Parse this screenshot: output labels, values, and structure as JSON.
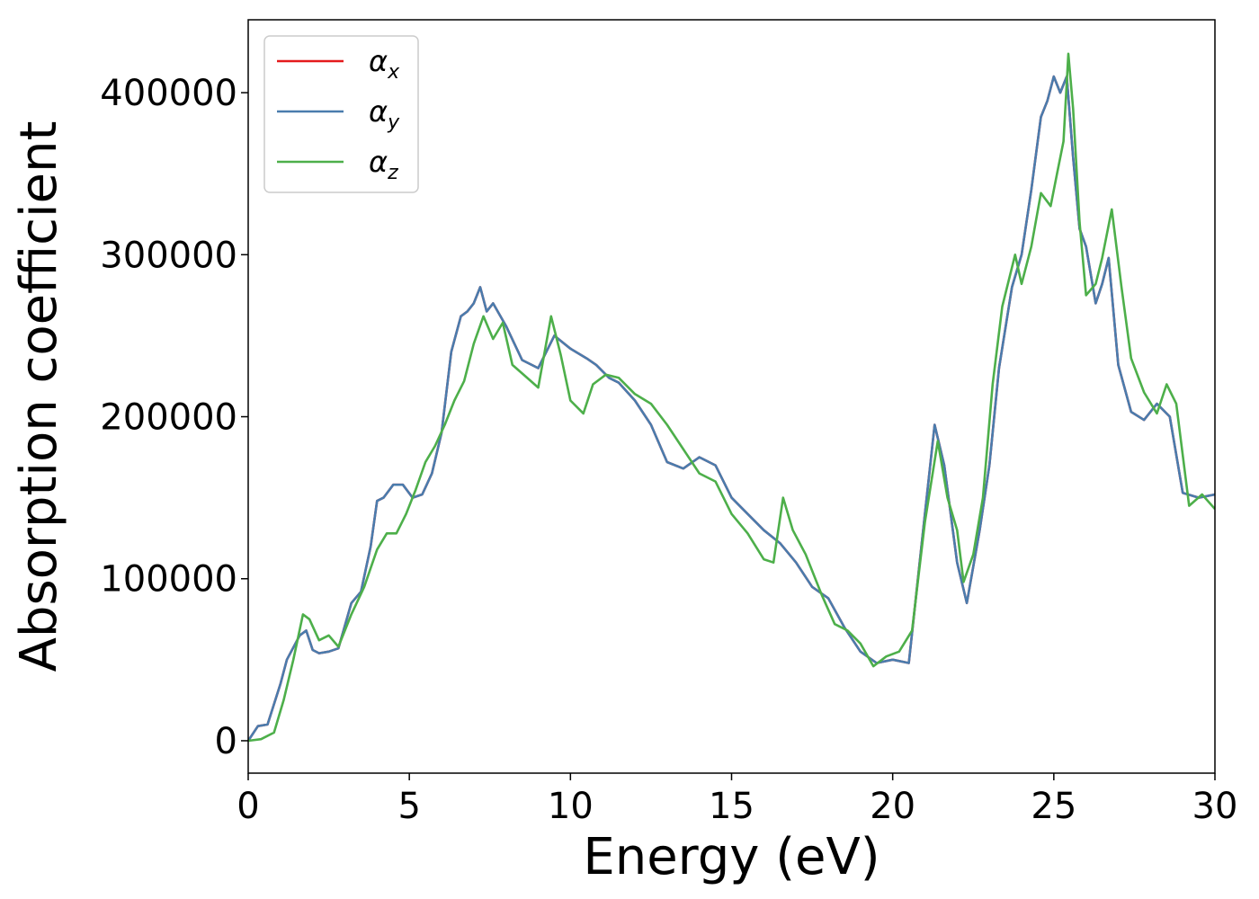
{
  "chart_data": {
    "type": "line",
    "title": "",
    "xlabel": "Energy (eV)",
    "ylabel": "Absorption coefficient",
    "xlim": [
      0,
      30
    ],
    "ylim": [
      -20000,
      445000
    ],
    "xticks": [
      0,
      5,
      10,
      15,
      20,
      25,
      30
    ],
    "yticks": [
      0,
      100000,
      200000,
      300000,
      400000
    ],
    "grid": false,
    "legend_position": "top-left",
    "series": [
      {
        "name": "α",
        "subscript": "x",
        "color": "#e41a1c",
        "x": [
          0,
          0.3,
          0.6,
          1.0,
          1.2,
          1.6,
          1.8,
          2.0,
          2.2,
          2.5,
          2.8,
          3.2,
          3.5,
          3.8,
          4.0,
          4.2,
          4.5,
          4.8,
          5.1,
          5.4,
          5.7,
          6.0,
          6.3,
          6.6,
          6.8,
          7.0,
          7.2,
          7.4,
          7.6,
          8.0,
          8.5,
          9.0,
          9.5,
          10.0,
          10.5,
          10.8,
          11.2,
          11.5,
          12.0,
          12.5,
          13.0,
          13.5,
          14.0,
          14.5,
          15.0,
          15.5,
          16.0,
          16.5,
          17.0,
          17.5,
          18.0,
          18.5,
          19.0,
          19.5,
          20.0,
          20.5,
          21.0,
          21.3,
          21.6,
          22.0,
          22.3,
          22.7,
          23.0,
          23.3,
          23.7,
          24.0,
          24.3,
          24.6,
          24.8,
          25.0,
          25.2,
          25.4,
          25.6,
          25.8,
          26.0,
          26.3,
          26.5,
          26.7,
          27.0,
          27.4,
          27.8,
          28.2,
          28.6,
          29.0,
          29.5,
          30.0
        ],
        "y": [
          0,
          9000,
          10000,
          35000,
          50000,
          65000,
          68000,
          56000,
          54000,
          55000,
          57000,
          85000,
          92000,
          120000,
          148000,
          150000,
          158000,
          158000,
          150000,
          152000,
          165000,
          190000,
          240000,
          262000,
          265000,
          270000,
          280000,
          265000,
          270000,
          256000,
          235000,
          230000,
          250000,
          242000,
          236000,
          232000,
          224000,
          221000,
          210000,
          195000,
          172000,
          168000,
          175000,
          170000,
          150000,
          140000,
          130000,
          122000,
          110000,
          95000,
          88000,
          70000,
          55000,
          48000,
          50000,
          48000,
          140000,
          195000,
          170000,
          110000,
          85000,
          130000,
          170000,
          230000,
          280000,
          300000,
          340000,
          385000,
          395000,
          410000,
          400000,
          410000,
          360000,
          316000,
          305000,
          270000,
          282000,
          298000,
          232000,
          203000,
          198000,
          208000,
          200000,
          153000,
          150000,
          152000
        ]
      },
      {
        "name": "α",
        "subscript": "y",
        "color": "#4a7cad",
        "x": [
          0,
          0.3,
          0.6,
          1.0,
          1.2,
          1.6,
          1.8,
          2.0,
          2.2,
          2.5,
          2.8,
          3.2,
          3.5,
          3.8,
          4.0,
          4.2,
          4.5,
          4.8,
          5.1,
          5.4,
          5.7,
          6.0,
          6.3,
          6.6,
          6.8,
          7.0,
          7.2,
          7.4,
          7.6,
          8.0,
          8.5,
          9.0,
          9.5,
          10.0,
          10.5,
          10.8,
          11.2,
          11.5,
          12.0,
          12.5,
          13.0,
          13.5,
          14.0,
          14.5,
          15.0,
          15.5,
          16.0,
          16.5,
          17.0,
          17.5,
          18.0,
          18.5,
          19.0,
          19.5,
          20.0,
          20.5,
          21.0,
          21.3,
          21.6,
          22.0,
          22.3,
          22.7,
          23.0,
          23.3,
          23.7,
          24.0,
          24.3,
          24.6,
          24.8,
          25.0,
          25.2,
          25.4,
          25.6,
          25.8,
          26.0,
          26.3,
          26.5,
          26.7,
          27.0,
          27.4,
          27.8,
          28.2,
          28.6,
          29.0,
          29.5,
          30.0
        ],
        "y": [
          0,
          9000,
          10000,
          35000,
          50000,
          65000,
          68000,
          56000,
          54000,
          55000,
          57000,
          85000,
          92000,
          120000,
          148000,
          150000,
          158000,
          158000,
          150000,
          152000,
          165000,
          190000,
          240000,
          262000,
          265000,
          270000,
          280000,
          265000,
          270000,
          256000,
          235000,
          230000,
          250000,
          242000,
          236000,
          232000,
          224000,
          221000,
          210000,
          195000,
          172000,
          168000,
          175000,
          170000,
          150000,
          140000,
          130000,
          122000,
          110000,
          95000,
          88000,
          70000,
          55000,
          48000,
          50000,
          48000,
          140000,
          195000,
          170000,
          110000,
          85000,
          130000,
          170000,
          230000,
          280000,
          300000,
          340000,
          385000,
          395000,
          410000,
          400000,
          410000,
          360000,
          316000,
          305000,
          270000,
          282000,
          298000,
          232000,
          203000,
          198000,
          208000,
          200000,
          153000,
          150000,
          152000
        ]
      },
      {
        "name": "α",
        "subscript": "z",
        "color": "#4daf4a",
        "x": [
          0,
          0.4,
          0.8,
          1.1,
          1.4,
          1.7,
          1.9,
          2.2,
          2.5,
          2.8,
          3.2,
          3.6,
          4.0,
          4.3,
          4.6,
          4.9,
          5.2,
          5.5,
          5.8,
          6.1,
          6.4,
          6.7,
          7.0,
          7.3,
          7.6,
          7.9,
          8.2,
          8.6,
          9.0,
          9.4,
          9.7,
          10.0,
          10.4,
          10.7,
          11.1,
          11.5,
          12.0,
          12.5,
          13.0,
          13.5,
          14.0,
          14.5,
          15.0,
          15.5,
          16.0,
          16.3,
          16.6,
          16.9,
          17.3,
          17.8,
          18.2,
          18.6,
          19.0,
          19.4,
          19.8,
          20.2,
          20.6,
          21.0,
          21.4,
          21.7,
          22.0,
          22.2,
          22.5,
          22.8,
          23.1,
          23.4,
          23.8,
          24.0,
          24.3,
          24.6,
          24.9,
          25.1,
          25.3,
          25.45,
          25.6,
          25.8,
          26.0,
          26.3,
          26.5,
          26.8,
          27.1,
          27.4,
          27.8,
          28.2,
          28.5,
          28.8,
          29.2,
          29.6,
          30.0
        ],
        "y": [
          0,
          1000,
          5000,
          25000,
          50000,
          78000,
          75000,
          62000,
          65000,
          58000,
          78000,
          95000,
          118000,
          128000,
          128000,
          140000,
          155000,
          172000,
          182000,
          195000,
          210000,
          222000,
          245000,
          262000,
          248000,
          258000,
          232000,
          225000,
          218000,
          262000,
          238000,
          210000,
          202000,
          220000,
          226000,
          224000,
          214000,
          208000,
          195000,
          180000,
          165000,
          160000,
          140000,
          128000,
          112000,
          110000,
          150000,
          130000,
          115000,
          90000,
          72000,
          68000,
          60000,
          46000,
          52000,
          55000,
          68000,
          135000,
          185000,
          150000,
          130000,
          98000,
          115000,
          150000,
          220000,
          268000,
          300000,
          282000,
          305000,
          338000,
          330000,
          350000,
          370000,
          424000,
          390000,
          320000,
          275000,
          282000,
          298000,
          328000,
          280000,
          236000,
          215000,
          202000,
          220000,
          208000,
          145000,
          152000,
          143000
        ]
      }
    ]
  }
}
